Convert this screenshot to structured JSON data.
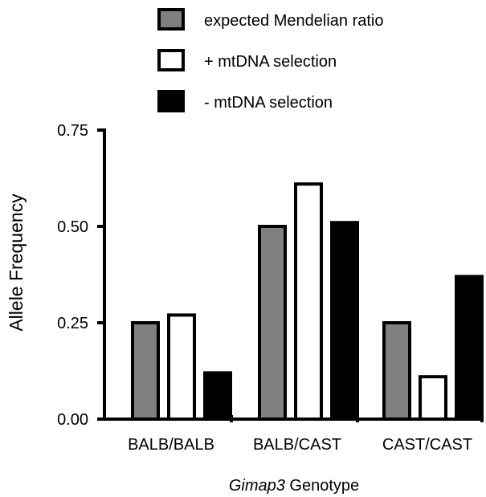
{
  "chart_data": {
    "type": "bar",
    "categories": [
      "BALB/BALB",
      "BALB/CAST",
      "CAST/CAST"
    ],
    "series": [
      {
        "name": "expected Mendelian ratio",
        "values": [
          0.25,
          0.5,
          0.25
        ],
        "color": "#808080"
      },
      {
        "name": "+ mtDNA selection",
        "values": [
          0.27,
          0.61,
          0.11
        ],
        "color": "#ffffff"
      },
      {
        "name": "- mtDNA selection",
        "values": [
          0.12,
          0.51,
          0.37
        ],
        "color": "#000000"
      }
    ],
    "ylabel": "Allele Frequency",
    "xlabel_italic": "Gimap3",
    "xlabel_rest": " Genotype",
    "ylim": [
      0,
      0.75
    ],
    "yticks": [
      "0.00",
      "0.25",
      "0.50",
      "0.75"
    ],
    "legend_position": "top",
    "grid": false
  }
}
